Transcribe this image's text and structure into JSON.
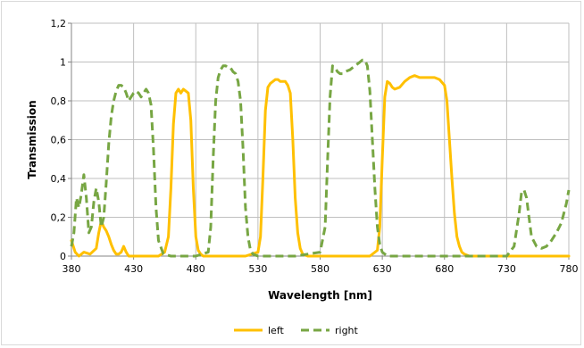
{
  "chart_data": {
    "type": "line",
    "title": "",
    "xlabel": "Wavelength [nm]",
    "ylabel": "Transmission",
    "xlim": [
      380,
      780
    ],
    "ylim": [
      0,
      1.2
    ],
    "xticks": [
      380,
      430,
      480,
      530,
      580,
      630,
      680,
      730,
      780
    ],
    "xtick_labels": [
      "380",
      "430",
      "480",
      "530",
      "580",
      "630",
      "680",
      "730",
      "780"
    ],
    "yticks": [
      0,
      0.2,
      0.4,
      0.6,
      0.8,
      1,
      1.2
    ],
    "ytick_labels": [
      "0",
      "0,2",
      "0,4",
      "0,6",
      "0,8",
      "1",
      "1,2"
    ],
    "grid": true,
    "legend_position": "bottom",
    "series": [
      {
        "name": "left",
        "color": "#ffc000",
        "style": "solid",
        "x": [
          380,
          383,
          386,
          390,
          395,
          400,
          402,
          404,
          406,
          408,
          410,
          412,
          414,
          416,
          418,
          420,
          422,
          424,
          426,
          430,
          440,
          450,
          455,
          458,
          460,
          462,
          464,
          466,
          468,
          470,
          472,
          474,
          476,
          478,
          480,
          482,
          484,
          486,
          490,
          500,
          510,
          520,
          530,
          532,
          534,
          536,
          538,
          540,
          542,
          544,
          546,
          548,
          550,
          552,
          554,
          556,
          558,
          560,
          562,
          564,
          566,
          570,
          580,
          590,
          600,
          610,
          620,
          626,
          628,
          630,
          632,
          634,
          636,
          638,
          640,
          644,
          648,
          652,
          656,
          660,
          664,
          668,
          672,
          676,
          680,
          682,
          684,
          686,
          688,
          690,
          692,
          694,
          696,
          700,
          710,
          720,
          730,
          740,
          760,
          780
        ],
        "y": [
          0.08,
          0.02,
          0.0,
          0.02,
          0.01,
          0.04,
          0.12,
          0.18,
          0.15,
          0.13,
          0.1,
          0.06,
          0.03,
          0.01,
          0.01,
          0.02,
          0.05,
          0.02,
          0.0,
          0.0,
          0.0,
          0.0,
          0.02,
          0.1,
          0.35,
          0.68,
          0.84,
          0.86,
          0.84,
          0.86,
          0.85,
          0.84,
          0.7,
          0.35,
          0.1,
          0.03,
          0.01,
          0.0,
          0.0,
          0.0,
          0.0,
          0.0,
          0.02,
          0.1,
          0.4,
          0.75,
          0.87,
          0.89,
          0.9,
          0.91,
          0.91,
          0.9,
          0.9,
          0.9,
          0.88,
          0.84,
          0.6,
          0.3,
          0.12,
          0.04,
          0.01,
          0.0,
          0.0,
          0.0,
          0.0,
          0.0,
          0.0,
          0.03,
          0.15,
          0.5,
          0.82,
          0.9,
          0.89,
          0.87,
          0.86,
          0.87,
          0.9,
          0.92,
          0.93,
          0.92,
          0.92,
          0.92,
          0.92,
          0.91,
          0.88,
          0.8,
          0.6,
          0.4,
          0.22,
          0.1,
          0.05,
          0.02,
          0.01,
          0.0,
          0.0,
          0.0,
          0.0,
          0.0,
          0.0,
          0.0
        ]
      },
      {
        "name": "right",
        "color": "#77a643",
        "style": "dashed",
        "x": [
          380,
          382,
          384,
          386,
          388,
          390,
          392,
          394,
          396,
          398,
          400,
          402,
          404,
          406,
          408,
          410,
          412,
          414,
          416,
          418,
          420,
          422,
          424,
          426,
          428,
          430,
          432,
          434,
          436,
          438,
          440,
          442,
          444,
          446,
          448,
          450,
          454,
          460,
          480,
          490,
          492,
          494,
          496,
          498,
          500,
          502,
          504,
          506,
          508,
          510,
          512,
          514,
          516,
          518,
          520,
          522,
          524,
          526,
          530,
          540,
          560,
          580,
          584,
          586,
          588,
          590,
          592,
          594,
          596,
          598,
          600,
          604,
          608,
          612,
          614,
          616,
          618,
          620,
          622,
          624,
          626,
          628,
          630,
          634,
          640,
          680,
          730,
          736,
          740,
          742,
          744,
          746,
          748,
          750,
          754,
          758,
          762,
          766,
          770,
          774,
          778,
          780
        ],
        "y": [
          0.05,
          0.12,
          0.3,
          0.25,
          0.32,
          0.42,
          0.3,
          0.12,
          0.15,
          0.28,
          0.35,
          0.28,
          0.15,
          0.2,
          0.38,
          0.58,
          0.72,
          0.8,
          0.85,
          0.88,
          0.88,
          0.87,
          0.84,
          0.8,
          0.82,
          0.84,
          0.85,
          0.84,
          0.82,
          0.84,
          0.86,
          0.84,
          0.78,
          0.55,
          0.25,
          0.08,
          0.01,
          0.0,
          0.0,
          0.02,
          0.15,
          0.5,
          0.8,
          0.92,
          0.96,
          0.98,
          0.98,
          0.97,
          0.97,
          0.95,
          0.94,
          0.9,
          0.8,
          0.55,
          0.25,
          0.1,
          0.03,
          0.01,
          0.0,
          0.0,
          0.0,
          0.02,
          0.15,
          0.5,
          0.82,
          0.98,
          0.97,
          0.95,
          0.94,
          0.94,
          0.95,
          0.96,
          0.98,
          1.0,
          1.01,
          1.01,
          0.98,
          0.85,
          0.6,
          0.35,
          0.15,
          0.06,
          0.02,
          0.0,
          0.0,
          0.0,
          0.0,
          0.05,
          0.22,
          0.33,
          0.34,
          0.3,
          0.2,
          0.1,
          0.05,
          0.04,
          0.05,
          0.08,
          0.12,
          0.17,
          0.27,
          0.34
        ]
      }
    ]
  }
}
